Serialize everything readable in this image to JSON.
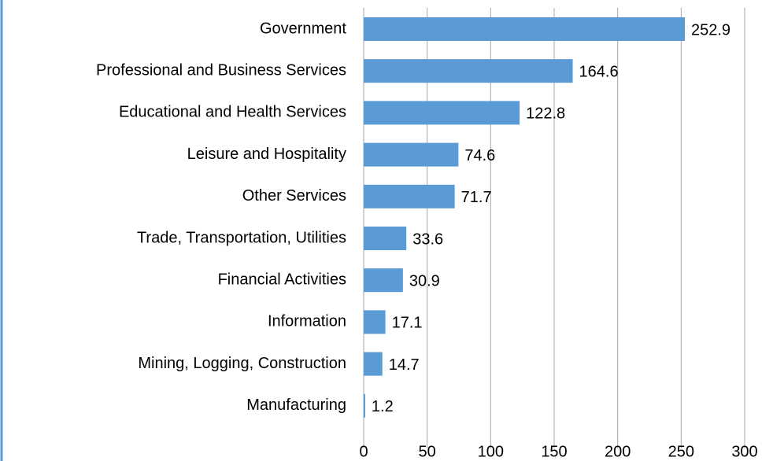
{
  "chart_data": {
    "type": "bar",
    "orientation": "horizontal",
    "categories": [
      "Government",
      "Professional and Business Services",
      "Educational and Health Services",
      "Leisure and Hospitality",
      "Other Services",
      "Trade, Transportation, Utilities",
      "Financial Activities",
      "Information",
      "Mining, Logging, Construction",
      "Manufacturing"
    ],
    "values": [
      252.9,
      164.6,
      122.8,
      74.6,
      71.7,
      33.6,
      30.9,
      17.1,
      14.7,
      1.2
    ],
    "color": "#5b9bd5",
    "xlim": [
      0,
      300
    ],
    "xticks": [
      0,
      50,
      100,
      150,
      200,
      250,
      300
    ],
    "grid": true
  }
}
